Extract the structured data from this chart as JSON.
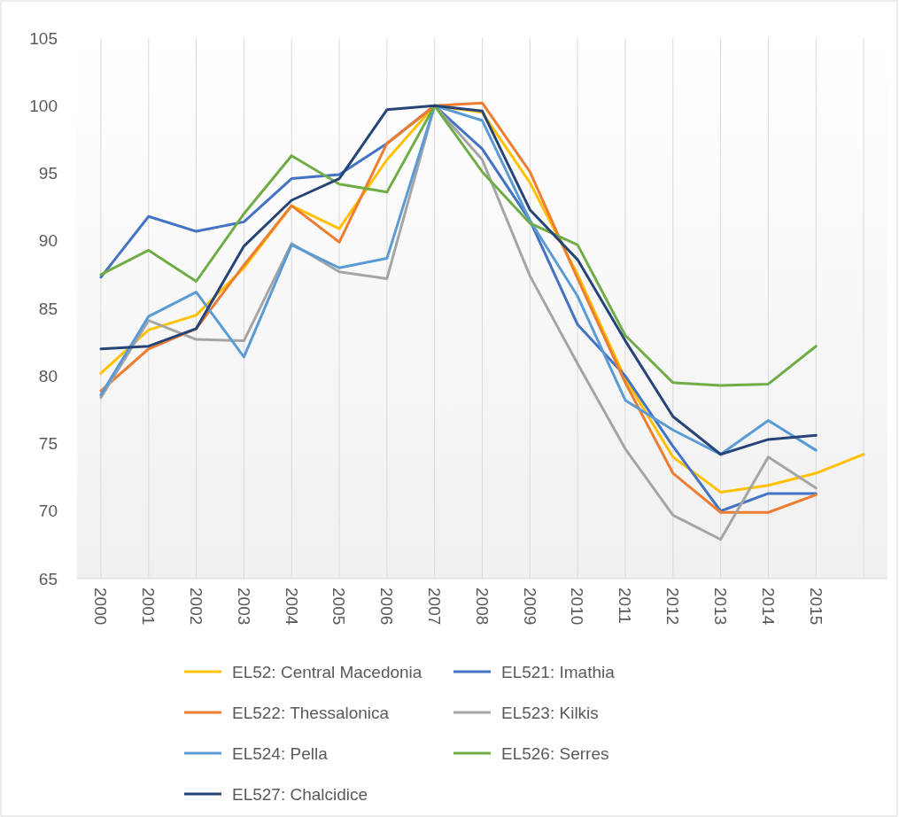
{
  "chart_data": {
    "type": "line",
    "categories": [
      "2000",
      "2001",
      "2002",
      "2003",
      "2004",
      "2005",
      "2006",
      "2007",
      "2008",
      "2009",
      "2010",
      "2011",
      "2012",
      "2013",
      "2014",
      "2015",
      null
    ],
    "series": [
      {
        "name": "EL52: Central Macedonia",
        "color": "#ffc000",
        "values": [
          80.2,
          83.4,
          84.5,
          88.0,
          92.6,
          90.9,
          96.0,
          100,
          99.5,
          94.3,
          87.5,
          79.8,
          74.0,
          71.4,
          71.9,
          72.8,
          74.2
        ]
      },
      {
        "name": "EL521: Imathia",
        "color": "#4472c4",
        "values": [
          87.3,
          91.8,
          90.7,
          91.4,
          94.6,
          94.9,
          97.2,
          100,
          96.8,
          91.5,
          83.8,
          80.0,
          74.8,
          70.0,
          71.3,
          71.3,
          null
        ]
      },
      {
        "name": "EL522: Thessalonica",
        "color": "#ed7d31",
        "values": [
          78.9,
          82.0,
          83.5,
          88.2,
          92.6,
          89.9,
          97.2,
          100,
          100.2,
          95.1,
          87.2,
          79.5,
          72.8,
          69.9,
          69.9,
          71.2,
          null
        ]
      },
      {
        "name": "EL523: Kilkis",
        "color": "#a5a5a5",
        "values": [
          78.4,
          84.1,
          82.7,
          82.6,
          89.8,
          87.7,
          87.2,
          100,
          96.0,
          87.4,
          80.9,
          74.6,
          69.7,
          67.9,
          74.0,
          71.7,
          null
        ]
      },
      {
        "name": "EL524: Pella",
        "color": "#5b9bd5",
        "values": [
          78.6,
          84.4,
          86.2,
          81.4,
          89.7,
          88.0,
          88.7,
          100,
          98.9,
          91.5,
          85.9,
          78.2,
          76.0,
          74.2,
          76.7,
          74.5,
          null
        ]
      },
      {
        "name": "EL526: Serres",
        "color": "#70ad47",
        "values": [
          87.5,
          89.3,
          87.0,
          92.0,
          96.3,
          94.2,
          93.6,
          100,
          95.1,
          91.3,
          89.7,
          83.0,
          79.5,
          79.3,
          79.4,
          82.2,
          null
        ]
      },
      {
        "name": "EL527: Chalcidice",
        "color": "#264478",
        "values": [
          82.0,
          82.2,
          83.5,
          89.6,
          93.0,
          94.6,
          99.7,
          100,
          99.6,
          92.3,
          88.6,
          82.6,
          77.0,
          74.2,
          75.3,
          75.6,
          null
        ]
      }
    ],
    "ylim": [
      65,
      105
    ],
    "yticks": [
      65,
      70,
      75,
      80,
      85,
      90,
      95,
      100,
      105
    ],
    "grid": "x",
    "legend": "bottom"
  }
}
